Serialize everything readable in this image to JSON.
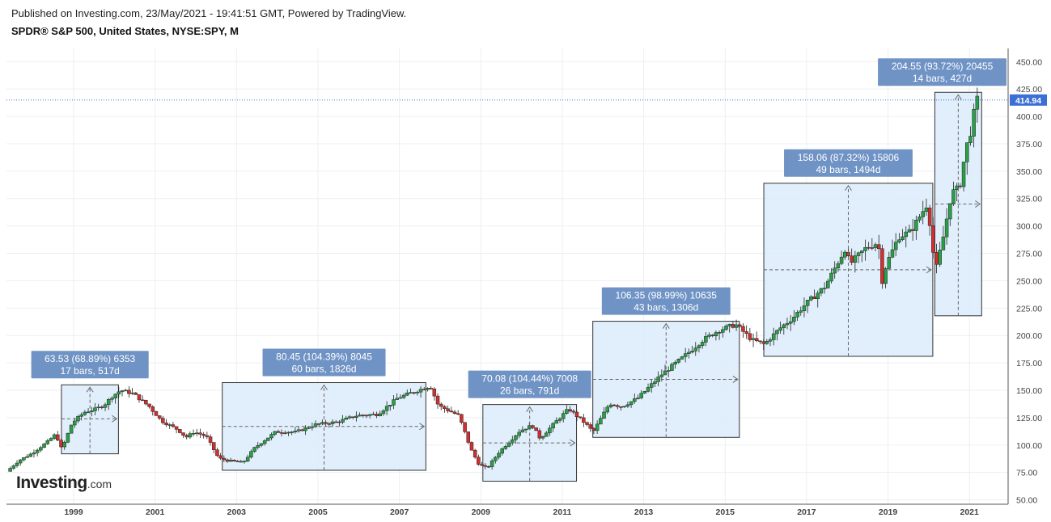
{
  "header": {
    "published": "Published on Investing.com, 23/May/2021 - 19:41:51 GMT, Powered by TradingView.",
    "symbol": "SPDR® S&P 500, United States, NYSE:SPY, M"
  },
  "logo": {
    "main": "Investing",
    "suffix": ".com"
  },
  "colors": {
    "up": "#27a046",
    "down": "#d32f2f",
    "box_fill": "#dcecfb",
    "box_stroke": "#333333",
    "label_bg": "#6f93c5",
    "last_price_bg": "#3c6fd6"
  },
  "chart_data": {
    "type": "candlestick",
    "title": "SPDR® S&P 500, United States, NYSE:SPY, M",
    "interval": "monthly",
    "x_range": [
      1997.35,
      2021.95
    ],
    "y_range": [
      46,
      462
    ],
    "y_ticks": [
      50,
      75,
      100,
      125,
      150,
      175,
      200,
      225,
      250,
      275,
      300,
      325,
      350,
      375,
      400,
      425,
      450
    ],
    "x_ticks": [
      1999,
      2001,
      2003,
      2005,
      2007,
      2009,
      2011,
      2013,
      2015,
      2017,
      2019,
      2021
    ],
    "last_price": 414.94,
    "series_path": [
      [
        1997.4,
        76
      ],
      [
        1997.7,
        86
      ],
      [
        1998.0,
        92
      ],
      [
        1998.4,
        103
      ],
      [
        1998.6,
        110
      ],
      [
        1998.75,
        96
      ],
      [
        1999.0,
        120
      ],
      [
        1999.3,
        130
      ],
      [
        1999.6,
        133
      ],
      [
        1999.8,
        137
      ],
      [
        2000.0,
        145
      ],
      [
        2000.2,
        150
      ],
      [
        2000.5,
        147
      ],
      [
        2000.9,
        135
      ],
      [
        2001.2,
        122
      ],
      [
        2001.6,
        114
      ],
      [
        2001.8,
        107
      ],
      [
        2002.0,
        112
      ],
      [
        2002.3,
        108
      ],
      [
        2002.6,
        88
      ],
      [
        2002.8,
        86
      ],
      [
        2003.2,
        84
      ],
      [
        2003.5,
        98
      ],
      [
        2004.0,
        112
      ],
      [
        2004.5,
        112
      ],
      [
        2005.0,
        119
      ],
      [
        2005.5,
        121
      ],
      [
        2006.0,
        127
      ],
      [
        2006.5,
        128
      ],
      [
        2007.0,
        143
      ],
      [
        2007.5,
        150
      ],
      [
        2007.8,
        154
      ],
      [
        2008.0,
        136
      ],
      [
        2008.5,
        127
      ],
      [
        2008.8,
        96
      ],
      [
        2009.0,
        82
      ],
      [
        2009.2,
        79
      ],
      [
        2009.5,
        94
      ],
      [
        2010.0,
        113
      ],
      [
        2010.3,
        118
      ],
      [
        2010.5,
        106
      ],
      [
        2010.9,
        122
      ],
      [
        2011.2,
        133
      ],
      [
        2011.6,
        120
      ],
      [
        2011.8,
        112
      ],
      [
        2012.2,
        138
      ],
      [
        2012.5,
        135
      ],
      [
        2012.9,
        143
      ],
      [
        2013.5,
        165
      ],
      [
        2014.0,
        180
      ],
      [
        2014.5,
        196
      ],
      [
        2014.9,
        205
      ],
      [
        2015.3,
        210
      ],
      [
        2015.7,
        196
      ],
      [
        2016.0,
        192
      ],
      [
        2016.4,
        207
      ],
      [
        2016.7,
        216
      ],
      [
        2017.0,
        228
      ],
      [
        2017.5,
        245
      ],
      [
        2018.0,
        280
      ],
      [
        2018.1,
        265
      ],
      [
        2018.5,
        280
      ],
      [
        2018.8,
        285
      ],
      [
        2018.9,
        250
      ],
      [
        2019.0,
        265
      ],
      [
        2019.3,
        290
      ],
      [
        2019.6,
        295
      ],
      [
        2020.0,
        320
      ],
      [
        2020.1,
        295
      ],
      [
        2020.2,
        257
      ],
      [
        2020.4,
        290
      ],
      [
        2020.6,
        330
      ],
      [
        2020.8,
        335
      ],
      [
        2020.95,
        370
      ],
      [
        2021.1,
        390
      ],
      [
        2021.2,
        414.94
      ]
    ],
    "measurements": [
      {
        "label1": "63.53 (68.89%) 6353",
        "label2": "17 bars, 517d",
        "x0": 1998.7,
        "x1": 2000.1,
        "y0": 92,
        "y1": 155,
        "cy": 124
      },
      {
        "label1": "80.45 (104.39%) 8045",
        "label2": "60 bars, 1826d",
        "x0": 2002.65,
        "x1": 2007.65,
        "y0": 77,
        "y1": 157,
        "cy": 117
      },
      {
        "label1": "70.08 (104.44%) 7008",
        "label2": "26 bars, 791d",
        "x0": 2009.05,
        "x1": 2011.35,
        "y0": 67,
        "y1": 137,
        "cy": 102
      },
      {
        "label1": "106.35 (98.99%) 10635",
        "label2": "43 bars, 1306d",
        "x0": 2011.75,
        "x1": 2015.35,
        "y0": 107,
        "y1": 213,
        "cy": 160
      },
      {
        "label1": "158.06 (87.32%) 15806",
        "label2": "49 bars, 1494d",
        "x0": 2015.95,
        "x1": 2020.1,
        "y0": 181,
        "y1": 339,
        "cy": 260
      },
      {
        "label1": "204.55 (93.72%) 20455",
        "label2": "14 bars, 427d",
        "x0": 2020.15,
        "x1": 2021.3,
        "y0": 218,
        "y1": 422,
        "cy": 320
      }
    ]
  }
}
